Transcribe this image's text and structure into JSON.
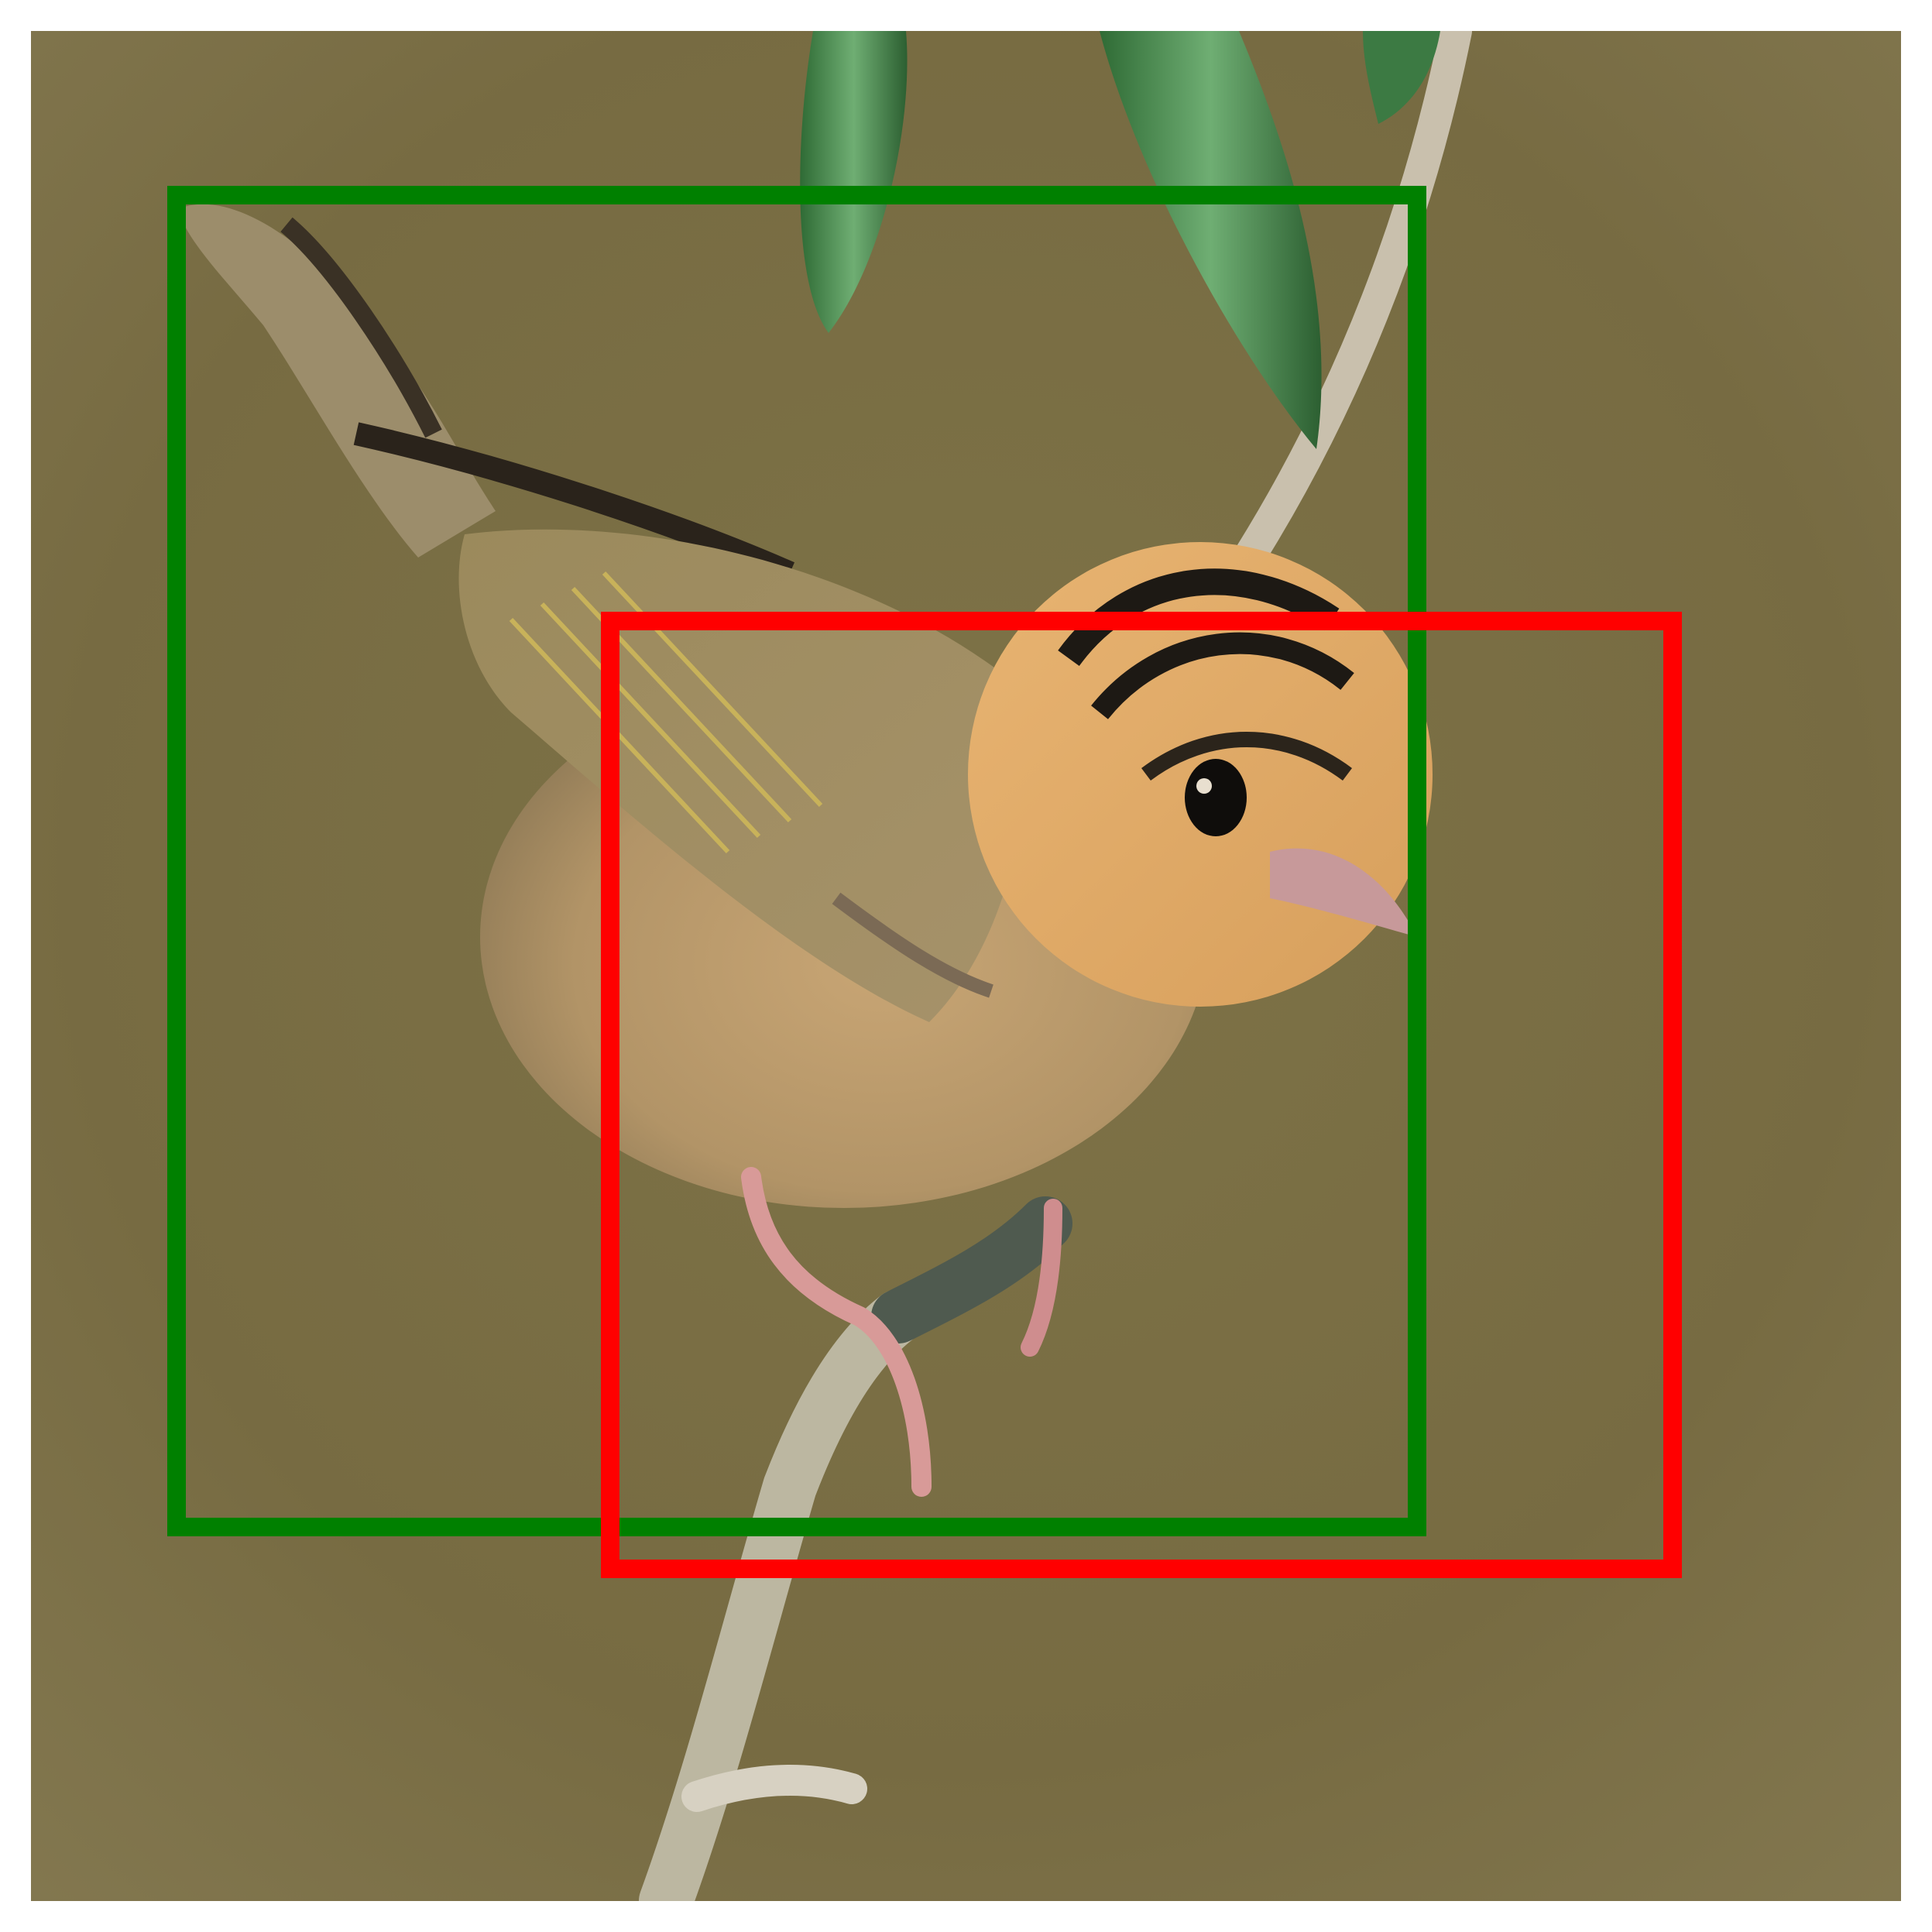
{
  "image": {
    "subject": "bird",
    "background_color": "#7a6f48"
  },
  "boxes": [
    {
      "name": "green-box",
      "color": "#008000"
    },
    {
      "name": "red-box",
      "color": "#ff0000"
    }
  ]
}
